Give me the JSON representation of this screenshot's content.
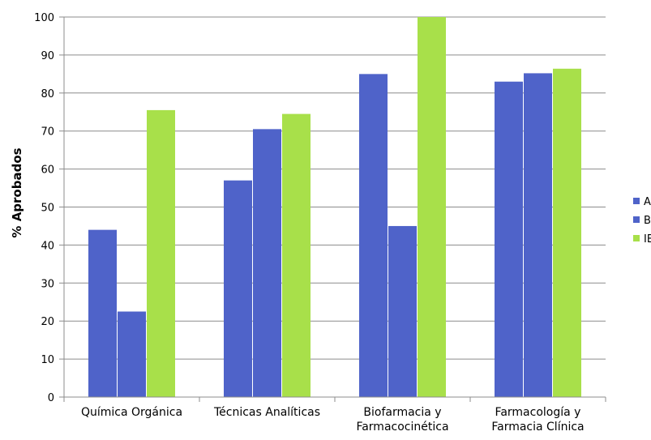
{
  "chart_data": {
    "type": "bar",
    "ylabel": "% Aprobados",
    "xlabel": "",
    "ylim": [
      0,
      100
    ],
    "yticks": [
      0,
      10,
      20,
      30,
      40,
      50,
      60,
      70,
      80,
      90,
      100
    ],
    "grid": "horizontal",
    "legend_position": "right",
    "categories": [
      [
        "Química Orgánica"
      ],
      [
        "Técnicas Analíticas"
      ],
      [
        "Biofarmacia y",
        "Farmacocinética"
      ],
      [
        "Farmacología y",
        "Farmacia Clínica"
      ]
    ],
    "series": [
      {
        "name": "A",
        "color": "#4f63c9",
        "values": [
          44,
          57,
          85,
          83
        ]
      },
      {
        "name": "B",
        "color": "#4f63c9",
        "values": [
          22.5,
          70.5,
          45,
          85.2
        ]
      },
      {
        "name": "IB",
        "color": "#a8e04a",
        "values": [
          75.5,
          74.5,
          100,
          86.4
        ]
      }
    ]
  }
}
